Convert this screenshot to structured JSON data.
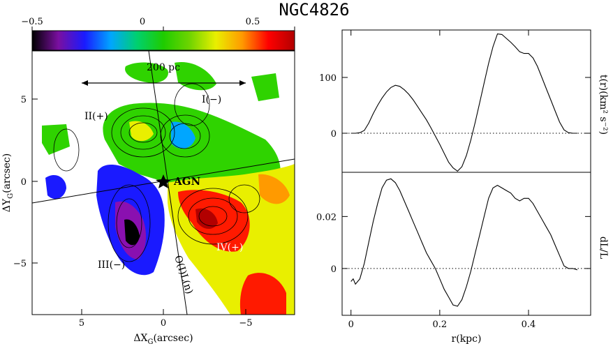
{
  "figure": {
    "title": "NGC4826"
  },
  "colorbar": {
    "tick_labels": [
      "−0.5",
      "0",
      "0.5"
    ],
    "range": [
      -0.5,
      0.5
    ],
    "colors": [
      "#000000",
      "#7a0fa0",
      "#1a1aff",
      "#00a6ff",
      "#00d06e",
      "#1ecc00",
      "#6fd400",
      "#e9ef00",
      "#ff9a00",
      "#ff0000",
      "#b20000"
    ]
  },
  "map_panel": {
    "xlabel": "ΔX",
    "xlabel_sub": "G",
    "xlabel_unit": "(arcsec)",
    "ylabel": "ΔY",
    "ylabel_sub": "G",
    "ylabel_unit": "(arcsec)",
    "x_ticks": [
      "5",
      "0",
      "−5"
    ],
    "y_ticks": [
      "5",
      "0",
      "−5"
    ],
    "xlim": [
      8,
      -8
    ],
    "ylim": [
      -8,
      8.5
    ],
    "annotations": {
      "scale": "200 pc",
      "agn": "AGN",
      "q1": "I(−)",
      "q2": "II(+)",
      "q3": "III(−)",
      "q4": "IV(+)",
      "oiln": "O(I)L(n)"
    }
  },
  "chart_data": [
    {
      "type": "line",
      "title": "",
      "ylabel": "t(r)(km² s⁻²)",
      "xlabel": "",
      "xlim": [
        -0.02,
        0.54
      ],
      "ylim": [
        -70,
        185
      ],
      "y_ticks": [
        "100",
        "0"
      ],
      "zero_line": "dotted",
      "series": [
        {
          "x": [
            0.0,
            0.01,
            0.02,
            0.03,
            0.04,
            0.05,
            0.06,
            0.07,
            0.08,
            0.09,
            0.1,
            0.11,
            0.12,
            0.13,
            0.14,
            0.15,
            0.16,
            0.17,
            0.18,
            0.19,
            0.2,
            0.21,
            0.22,
            0.23,
            0.24,
            0.25,
            0.26,
            0.27,
            0.28,
            0.29,
            0.3,
            0.31,
            0.32,
            0.33,
            0.34,
            0.35,
            0.36,
            0.37,
            0.38,
            0.39,
            0.4,
            0.41,
            0.42,
            0.43,
            0.44,
            0.45,
            0.46,
            0.47,
            0.48,
            0.49,
            0.5,
            0.51
          ],
          "y": [
            0,
            0,
            1,
            5,
            18,
            35,
            50,
            63,
            74,
            82,
            86,
            84,
            78,
            70,
            60,
            48,
            36,
            24,
            10,
            -5,
            -20,
            -36,
            -52,
            -62,
            -68,
            -60,
            -40,
            -12,
            20,
            55,
            90,
            125,
            155,
            178,
            177,
            170,
            163,
            155,
            146,
            143,
            143,
            135,
            120,
            100,
            80,
            60,
            40,
            20,
            6,
            1,
            0,
            0
          ]
        }
      ]
    },
    {
      "type": "line",
      "title": "",
      "ylabel": "dL/L",
      "xlabel": "r(kpc)",
      "xlim": [
        -0.02,
        0.54
      ],
      "ylim": [
        -0.018,
        0.037
      ],
      "x_ticks": [
        "0",
        "0.2",
        "0.4"
      ],
      "y_ticks": [
        "0.02",
        "0"
      ],
      "zero_line": "dotted",
      "series": [
        {
          "x": [
            0.0,
            0.005,
            0.01,
            0.015,
            0.02,
            0.03,
            0.04,
            0.05,
            0.06,
            0.07,
            0.08,
            0.09,
            0.1,
            0.11,
            0.12,
            0.13,
            0.14,
            0.15,
            0.16,
            0.17,
            0.18,
            0.19,
            0.2,
            0.21,
            0.22,
            0.23,
            0.24,
            0.25,
            0.26,
            0.27,
            0.28,
            0.29,
            0.3,
            0.31,
            0.32,
            0.33,
            0.34,
            0.35,
            0.36,
            0.37,
            0.38,
            0.39,
            0.4,
            0.41,
            0.42,
            0.43,
            0.44,
            0.45,
            0.46,
            0.47,
            0.48,
            0.49,
            0.5,
            0.51
          ],
          "y": [
            -0.005,
            -0.004,
            -0.006,
            -0.005,
            -0.004,
            0.002,
            0.01,
            0.018,
            0.025,
            0.031,
            0.034,
            0.0345,
            0.033,
            0.03,
            0.026,
            0.022,
            0.018,
            0.014,
            0.01,
            0.006,
            0.003,
            0.0,
            -0.004,
            -0.008,
            -0.011,
            -0.014,
            -0.0145,
            -0.012,
            -0.007,
            -0.001,
            0.006,
            0.013,
            0.02,
            0.027,
            0.031,
            0.032,
            0.031,
            0.03,
            0.029,
            0.027,
            0.026,
            0.027,
            0.027,
            0.025,
            0.022,
            0.019,
            0.016,
            0.013,
            0.009,
            0.005,
            0.001,
            0.0,
            0.0,
            -0.0005
          ]
        }
      ]
    }
  ]
}
